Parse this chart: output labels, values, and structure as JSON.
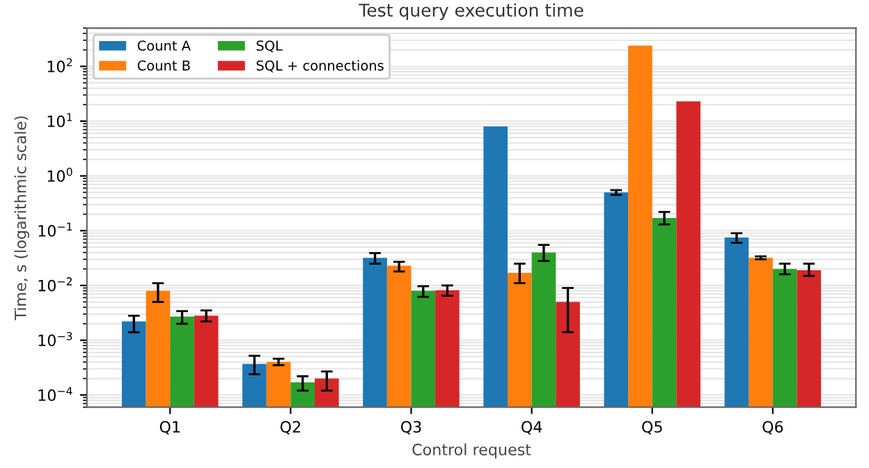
{
  "chart_data": {
    "type": "bar",
    "title": "Test query execution time",
    "xlabel": "Control request",
    "ylabel": "Time, s (logarithmic scale)",
    "categories": [
      "Q1",
      "Q2",
      "Q3",
      "Q4",
      "Q5",
      "Q6"
    ],
    "series": [
      {
        "name": "Count A",
        "color": "#1f77b4",
        "values": [
          0.0022,
          0.00037,
          0.032,
          8,
          0.5,
          0.075
        ],
        "errors": [
          [
            0.0014,
            0.0028
          ],
          [
            0.00024,
            0.00052
          ],
          [
            0.025,
            0.039
          ],
          null,
          [
            0.45,
            0.55
          ],
          [
            0.06,
            0.09
          ]
        ]
      },
      {
        "name": "Count B",
        "color": "#ff7f0e",
        "values": [
          0.008,
          0.0004,
          0.023,
          0.017,
          240,
          0.032
        ],
        "errors": [
          [
            0.005,
            0.011
          ],
          [
            0.00035,
            0.00046
          ],
          [
            0.018,
            0.027
          ],
          [
            0.011,
            0.025
          ],
          null,
          [
            0.03,
            0.034
          ]
        ]
      },
      {
        "name": "SQL",
        "color": "#2ca02c",
        "values": [
          0.0027,
          0.00017,
          0.008,
          0.04,
          0.17,
          0.02
        ],
        "errors": [
          [
            0.002,
            0.0034
          ],
          [
            0.00012,
            0.00022
          ],
          [
            0.0062,
            0.0097
          ],
          [
            0.028,
            0.055
          ],
          [
            0.13,
            0.22
          ],
          [
            0.016,
            0.025
          ]
        ]
      },
      {
        "name": "SQL + connections",
        "color": "#d62728",
        "values": [
          0.0028,
          0.0002,
          0.0082,
          0.005,
          23,
          0.019
        ],
        "errors": [
          [
            0.0022,
            0.0035
          ],
          [
            0.00012,
            0.00027
          ],
          [
            0.0065,
            0.01
          ],
          [
            0.0014,
            0.009
          ],
          null,
          [
            0.015,
            0.025
          ]
        ]
      }
    ],
    "log": true,
    "ylim": [
      6e-05,
      500
    ],
    "yticks": [
      {
        "value": 0.0001,
        "label": "10$^{−4}$"
      },
      {
        "value": 0.001,
        "label": "10$^{−3}$"
      },
      {
        "value": 0.01,
        "label": "10$^{−2}$"
      },
      {
        "value": 0.1,
        "label": "10$^{−1}$"
      },
      {
        "value": 1,
        "label": "10$^{0}$"
      },
      {
        "value": 10,
        "label": "10$^{1}$"
      },
      {
        "value": 100,
        "label": "10$^{2}$"
      }
    ],
    "grid": "y",
    "legend": "top left"
  }
}
